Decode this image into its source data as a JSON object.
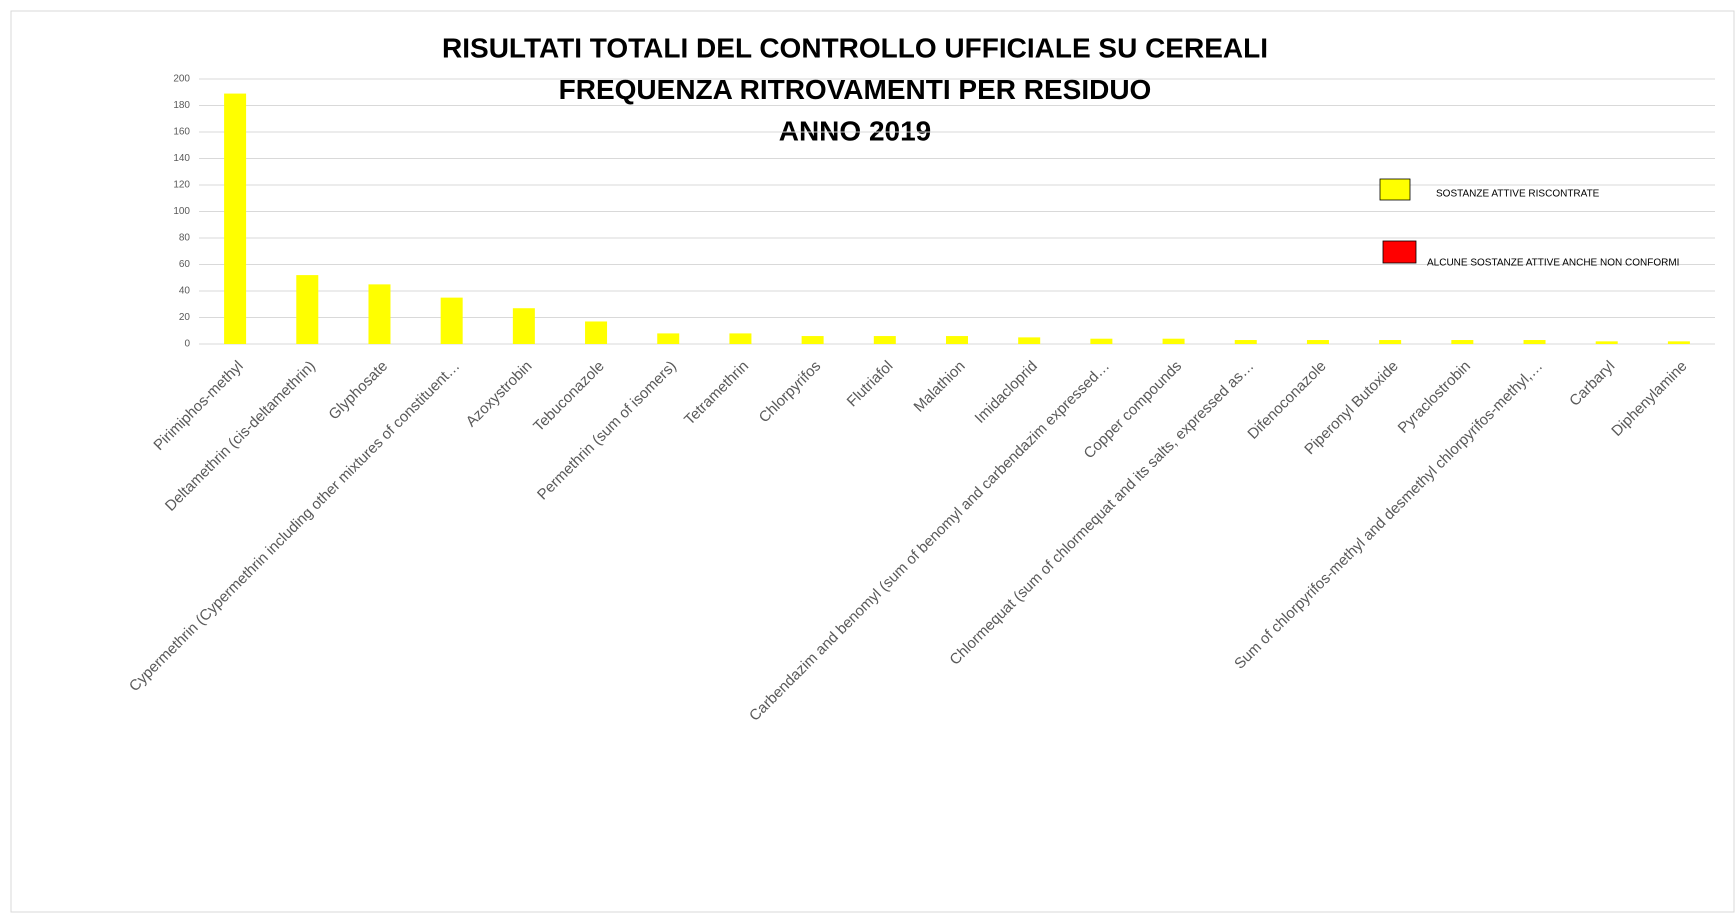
{
  "chart_data": {
    "type": "bar",
    "title": [
      "RISULTATI TOTALI DEL CONTROLLO UFFICIALE SU CEREALI",
      "FREQUENZA RITROVAMENTI PER RESIDUO",
      "ANNO 2019"
    ],
    "categories": [
      "Pirimiphos-methyl",
      "Deltamethrin (cis-deltamethrin)",
      "Glyphosate",
      "Cypermethrin (Cypermethrin including other mixtures of constituent…",
      "Azoxystrobin",
      "Tebuconazole",
      "Permethrin (sum of isomers)",
      "Tetramethrin",
      "Chlorpyrifos",
      "Flutriafol",
      "Malathion",
      "Imidacloprid",
      "Carbendazim and benomyl (sum of benomyl and carbendazim expressed…",
      "Copper compounds",
      "Chlormequat (sum of chlormequat and its salts, expressed as…",
      "Difenoconazole",
      "Piperonyl Butoxide",
      "Pyraclostrobin",
      "Sum of chlorpyrifos-methyl and desmethyl chlorpyrifos-methyl,…",
      "Carbaryl",
      "Diphenylamine"
    ],
    "values": [
      189,
      52,
      45,
      35,
      27,
      17,
      8,
      8,
      6,
      6,
      6,
      5,
      4,
      4,
      3,
      3,
      3,
      3,
      3,
      2,
      2
    ],
    "color": "#ffff00",
    "ylim": [
      0,
      200
    ],
    "yticks": [
      0,
      20,
      40,
      60,
      80,
      100,
      120,
      140,
      160,
      180,
      200
    ],
    "grid": true,
    "legend": [
      {
        "name": "SOSTANZE ATTIVE RISCONTRATE",
        "color": "#ffff00"
      },
      {
        "name": "ALCUNE SOSTANZE ATTIVE ANCHE  NON CONFORMI",
        "color": "#ff0000"
      }
    ]
  }
}
